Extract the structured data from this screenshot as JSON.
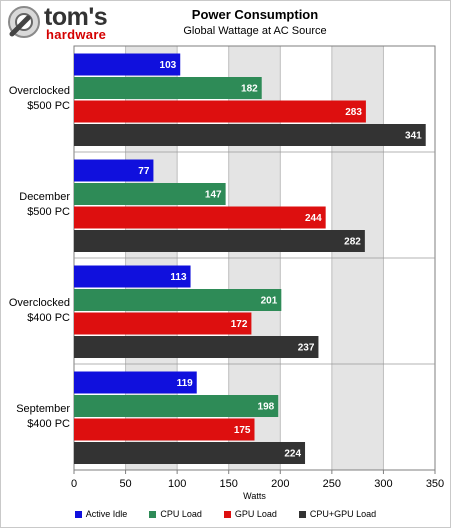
{
  "logo": {
    "word": "tom's",
    "sub": "hardware"
  },
  "chart_data": {
    "type": "bar",
    "orientation": "horizontal",
    "title": "Power Consumption",
    "subtitle": "Global Wattage at AC Source",
    "xlabel": "Watts",
    "xlim": [
      0,
      350
    ],
    "xticks": [
      0,
      50,
      100,
      150,
      200,
      250,
      300,
      350
    ],
    "grid": true,
    "legend_position": "bottom",
    "categories": [
      [
        "Overclocked",
        "$500 PC"
      ],
      [
        "December",
        "$500 PC"
      ],
      [
        "Overclocked",
        "$400 PC"
      ],
      [
        "September",
        "$400 PC"
      ]
    ],
    "series": [
      {
        "name": "Active Idle",
        "color": "#1010dd",
        "values": [
          103,
          77,
          113,
          119
        ]
      },
      {
        "name": "CPU Load",
        "color": "#2e8b57",
        "values": [
          182,
          147,
          201,
          198
        ]
      },
      {
        "name": "GPU Load",
        "color": "#dd0f0f",
        "values": [
          283,
          244,
          172,
          175
        ]
      },
      {
        "name": "CPU+GPU Load",
        "color": "#333333",
        "values": [
          341,
          282,
          237,
          224
        ]
      }
    ]
  }
}
